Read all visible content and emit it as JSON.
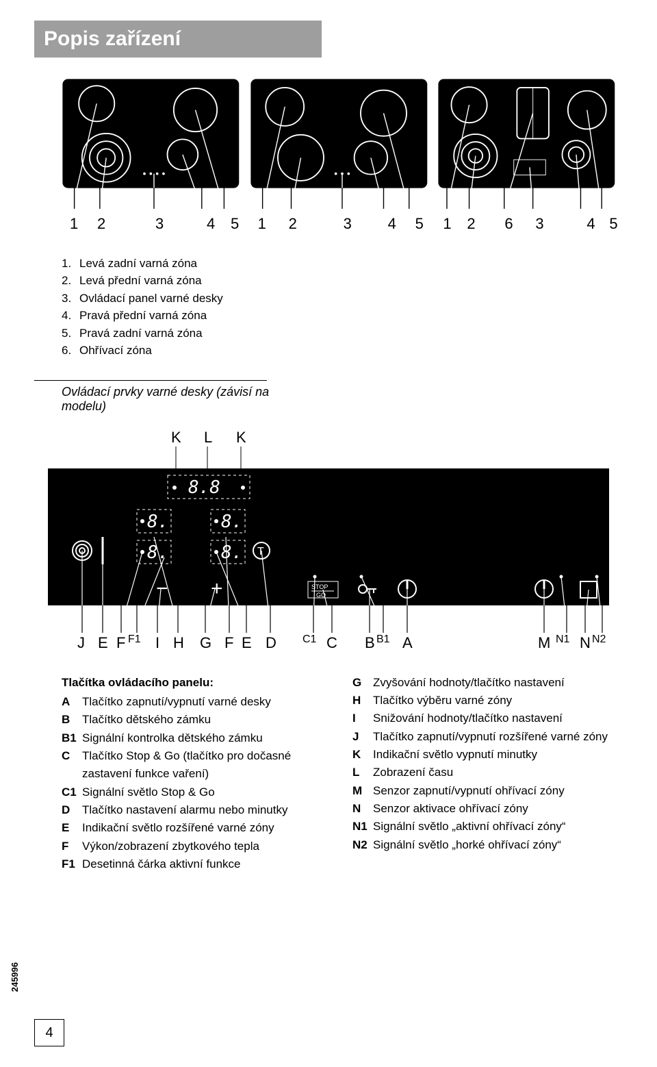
{
  "title": "Popis zařízení",
  "hob1_labels": [
    "1",
    "2",
    "3",
    "4",
    "5"
  ],
  "hob2_labels": [
    "1",
    "2",
    "3",
    "4",
    "5"
  ],
  "hob3_labels": [
    "1",
    "2",
    "6",
    "3",
    "4",
    "5"
  ],
  "legend": [
    {
      "n": "1.",
      "t": "Levá zadní varná zóna"
    },
    {
      "n": "2.",
      "t": "Levá přední varná zóna"
    },
    {
      "n": "3.",
      "t": "Ovládací panel varné desky"
    },
    {
      "n": "4.",
      "t": "Pravá přední varná zóna"
    },
    {
      "n": "5.",
      "t": "Pravá zadní varná zóna"
    },
    {
      "n": "6.",
      "t": "Ohřívací zóna"
    }
  ],
  "subtitle": "Ovládací prvky varné desky (závisí na modelu)",
  "panel_heading": "Tlačítka ovládacího panelu:",
  "left_keys": [
    {
      "k": "A",
      "t": "Tlačítko zapnutí/vypnutí varné desky"
    },
    {
      "k": "B",
      "t": "Tlačítko dětského zámku"
    },
    {
      "k": "B1",
      "t": "Signální kontrolka dětského zámku"
    },
    {
      "k": "C",
      "t": "Tlačítko Stop & Go (tlačítko pro dočasné"
    },
    {
      "k": "",
      "t": "zastavení funkce vaření)"
    },
    {
      "k": "C1",
      "t": "Signální světlo Stop & Go"
    },
    {
      "k": "D",
      "t": "Tlačítko nastavení alarmu nebo   minutky"
    },
    {
      "k": "E",
      "t": "Indikační světlo rozšířené varné zóny"
    },
    {
      "k": "F",
      "t": "Výkon/zobrazení zbytkového tepla"
    },
    {
      "k": "F1",
      "t": "Desetinná čárka aktivní funkce"
    }
  ],
  "right_keys": [
    {
      "k": "G",
      "t": "Zvyšování hodnoty/tlačítko nastavení"
    },
    {
      "k": "H",
      "t": " Tlačítko výběru varné zóny"
    },
    {
      "k": "I",
      "t": "Snižování hodnoty/tlačítko nastavení"
    },
    {
      "k": "J",
      "t": "Tlačítko zapnutí/vypnutí rozšířené varné zóny"
    },
    {
      "k": "K",
      "t": " Indikační světlo vypnutí minutky"
    },
    {
      "k": "L",
      "t": "Zobrazení času"
    },
    {
      "k": "M",
      "t": "Senzor zapnutí/vypnutí ohřívací zóny"
    },
    {
      "k": "N",
      "t": "Senzor aktivace ohřívací zóny"
    },
    {
      "k": "N1",
      "t": "Signální světlo „aktivní ohřívací zóny“"
    },
    {
      "k": "N2",
      "t": "Signální světlo „horké ohřívací zóny“"
    }
  ],
  "page_number": "4",
  "side_code": "245996",
  "top_letters": [
    "K",
    "L",
    "K"
  ],
  "bottom_letters": [
    "J",
    "E",
    "F",
    "F1",
    "I",
    "H",
    "G",
    "F",
    "E",
    "D",
    "C1",
    "C",
    "B",
    "B1",
    "A",
    "M",
    "N1",
    "N",
    "N2"
  ],
  "colors": {
    "title_bg": "#9e9e9e",
    "title_fg": "#ffffff",
    "black": "#000000",
    "white": "#ffffff"
  }
}
